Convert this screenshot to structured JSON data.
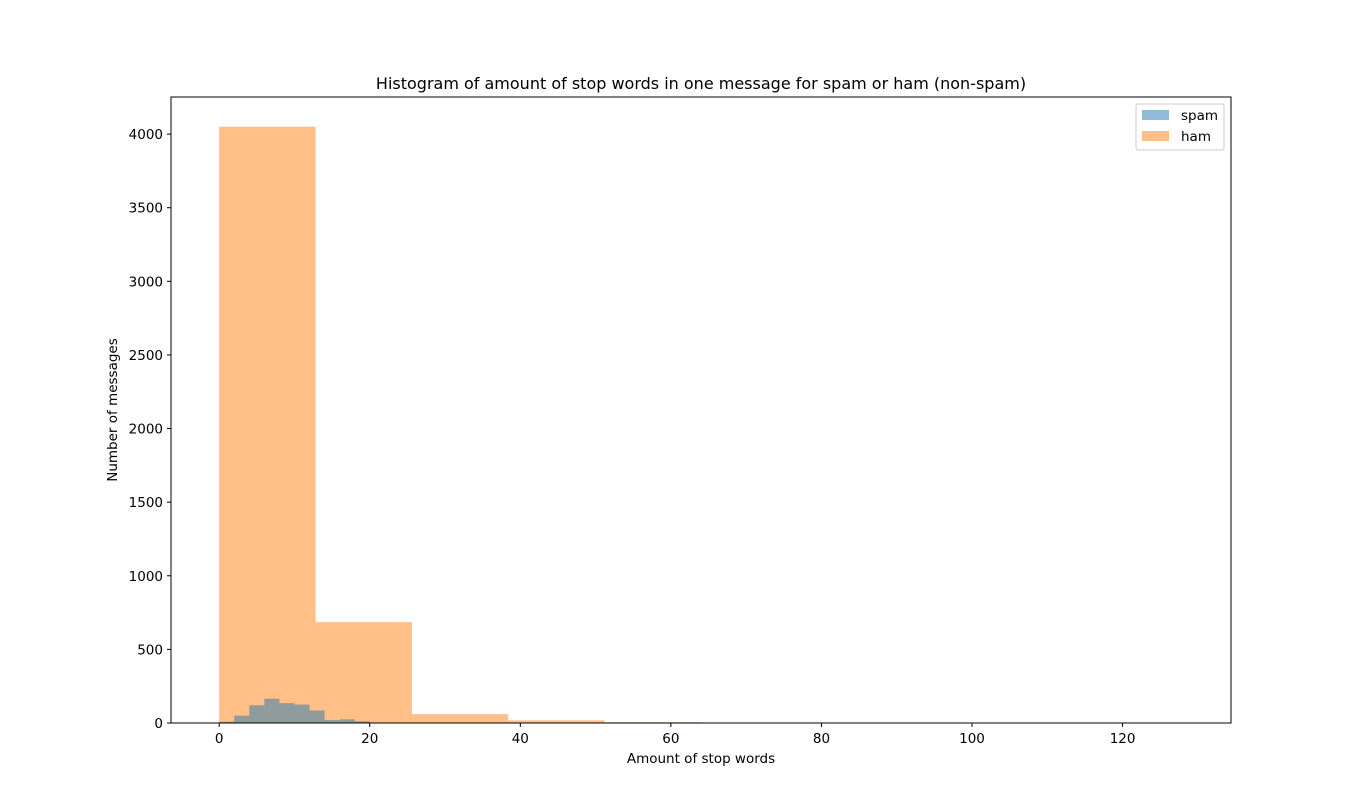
{
  "chart_data": {
    "type": "bar",
    "chart_kind": "histogram",
    "title": "Histogram of amount of stop words in one message for spam or ham (non-spam)",
    "xlabel": "Amount of stop words",
    "ylabel": "Number of messages",
    "xlim": [
      -6.4,
      134.4
    ],
    "ylim": [
      0,
      4252
    ],
    "xticks": [
      0,
      20,
      40,
      60,
      80,
      100,
      120
    ],
    "yticks": [
      0,
      500,
      1000,
      1500,
      2000,
      2500,
      3000,
      3500,
      4000
    ],
    "grid": false,
    "legend_position": "top-right",
    "series": [
      {
        "name": "spam",
        "color": "#1f77b4",
        "alpha": 0.5,
        "bin_edges": [
          0,
          2,
          4,
          6,
          8,
          10,
          12,
          14,
          16,
          18,
          20
        ],
        "values": [
          8,
          50,
          120,
          165,
          135,
          125,
          85,
          20,
          25,
          12
        ]
      },
      {
        "name": "ham",
        "color": "#ff7f0e",
        "alpha": 0.5,
        "bin_edges": [
          0,
          12.8,
          25.6,
          38.4,
          51.2,
          64,
          76.8,
          89.6,
          102.4,
          115.2,
          128
        ],
        "values": [
          4050,
          685,
          60,
          18,
          5,
          3,
          0,
          0,
          0,
          1
        ]
      }
    ]
  }
}
